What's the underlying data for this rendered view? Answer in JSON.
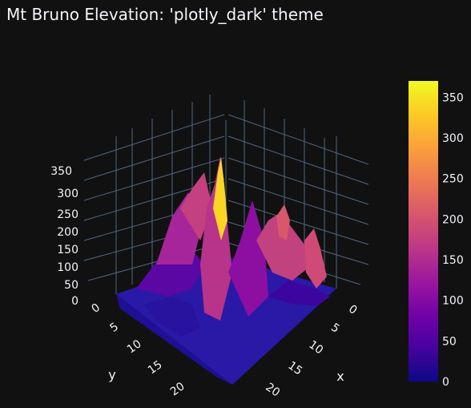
{
  "chart_data": {
    "type": "surface",
    "title": "Mt Bruno Elevation: 'plotly_dark' theme",
    "theme": "plotly_dark",
    "xlabel": "x",
    "ylabel": "y",
    "zlabel": "",
    "x_ticks": [
      "0",
      "5",
      "10",
      "15",
      "20"
    ],
    "y_ticks": [
      "0",
      "5",
      "10",
      "15",
      "20"
    ],
    "z_ticks": [
      "0",
      "50",
      "100",
      "150",
      "200",
      "250",
      "300",
      "350"
    ],
    "z_range": [
      0,
      370
    ],
    "colorbar": {
      "ticks": [
        "0",
        "50",
        "100",
        "150",
        "200",
        "250",
        "300",
        "350"
      ],
      "range": [
        0,
        370
      ],
      "colorscale": [
        "#0d0887",
        "#46039f",
        "#7201a8",
        "#9c179e",
        "#bd3786",
        "#d8576b",
        "#ed7953",
        "#fb9f3a",
        "#fdca26",
        "#f0f921"
      ]
    },
    "surface_peaks": [
      {
        "x": 12,
        "y": 3,
        "z": 370
      },
      {
        "x": 9,
        "y": 2,
        "z": 280
      },
      {
        "x": 5,
        "y": 4,
        "z": 260
      },
      {
        "x": 17,
        "y": 2,
        "z": 240
      },
      {
        "x": 20,
        "y": 5,
        "z": 210
      },
      {
        "x": 3,
        "y": 9,
        "z": 150
      },
      {
        "x": 14,
        "y": 10,
        "z": 120
      }
    ]
  }
}
